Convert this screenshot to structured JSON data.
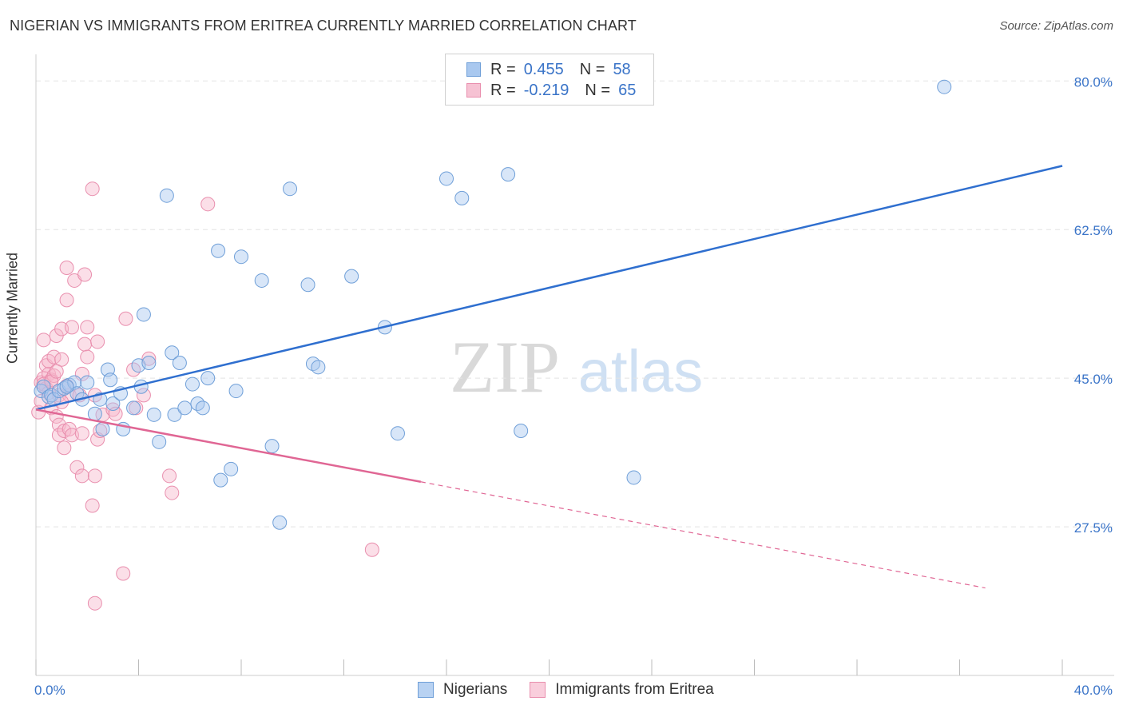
{
  "title": "NIGERIAN VS IMMIGRANTS FROM ERITREA CURRENTLY MARRIED CORRELATION CHART",
  "source": "Source: ZipAtlas.com",
  "watermark": {
    "zip": "ZIP",
    "atlas": "atlas"
  },
  "legend_top": {
    "rows": [
      {
        "r_label": "R =",
        "r_value": "0.455",
        "n_label": "N =",
        "n_value": "58"
      },
      {
        "r_label": "R =",
        "r_value": "-0.219",
        "n_label": "N =",
        "n_value": "65"
      }
    ]
  },
  "colors": {
    "blue_fill": "#a9c8ef",
    "blue_stroke": "#6f9fd8",
    "blue_line": "#2f6fcf",
    "pink_fill": "#f6b9cc",
    "pink_stroke": "#e98fae",
    "pink_line": "#e06694",
    "axis_text": "#3a74c8",
    "grid": "#e4e4e4"
  },
  "chart_data": {
    "type": "scatter",
    "title": "NIGERIAN VS IMMIGRANTS FROM ERITREA CURRENTLY MARRIED CORRELATION CHART",
    "xlabel": "",
    "ylabel": "Currently Married",
    "xlim": [
      0,
      40
    ],
    "ylim": [
      10,
      82
    ],
    "x_tick_labels": [
      "0.0%",
      "40.0%"
    ],
    "y_ticks": [
      27.5,
      45.0,
      62.5,
      80.0
    ],
    "y_tick_labels": [
      "27.5%",
      "45.0%",
      "62.5%",
      "80.0%"
    ],
    "legend": [
      "Nigerians",
      "Immigrants from Eritrea"
    ],
    "series": [
      {
        "name": "Nigerians",
        "R": 0.455,
        "N": 58,
        "trend": {
          "x": [
            0.0,
            40.0
          ],
          "y": [
            41.3,
            70.0
          ],
          "style": "solid"
        },
        "points": [
          [
            0.2,
            43.5
          ],
          [
            0.3,
            44.0
          ],
          [
            0.5,
            42.8
          ],
          [
            0.6,
            43.0
          ],
          [
            0.7,
            42.5
          ],
          [
            0.9,
            43.5
          ],
          [
            1.1,
            43.8
          ],
          [
            1.3,
            44.2
          ],
          [
            1.5,
            44.5
          ],
          [
            1.6,
            43.2
          ],
          [
            1.8,
            42.5
          ],
          [
            2.0,
            44.5
          ],
          [
            2.3,
            40.8
          ],
          [
            2.5,
            42.5
          ],
          [
            2.6,
            39.0
          ],
          [
            2.8,
            46.0
          ],
          [
            2.9,
            44.8
          ],
          [
            3.0,
            42.0
          ],
          [
            3.3,
            43.2
          ],
          [
            3.4,
            39.0
          ],
          [
            3.8,
            41.5
          ],
          [
            4.0,
            46.5
          ],
          [
            4.1,
            44.0
          ],
          [
            4.2,
            52.5
          ],
          [
            4.4,
            46.8
          ],
          [
            4.6,
            40.7
          ],
          [
            4.8,
            37.5
          ],
          [
            5.1,
            66.5
          ],
          [
            5.3,
            48.0
          ],
          [
            5.4,
            40.7
          ],
          [
            5.6,
            46.8
          ],
          [
            5.8,
            41.5
          ],
          [
            6.1,
            44.3
          ],
          [
            6.3,
            42.0
          ],
          [
            6.5,
            41.5
          ],
          [
            6.7,
            45.0
          ],
          [
            7.2,
            33.0
          ],
          [
            7.1,
            60.0
          ],
          [
            7.6,
            34.3
          ],
          [
            7.8,
            43.5
          ],
          [
            8.0,
            59.3
          ],
          [
            8.8,
            56.5
          ],
          [
            9.2,
            37.0
          ],
          [
            9.5,
            28.0
          ],
          [
            9.9,
            67.3
          ],
          [
            10.6,
            56.0
          ],
          [
            10.8,
            46.7
          ],
          [
            11.0,
            46.3
          ],
          [
            12.3,
            57.0
          ],
          [
            13.6,
            51.0
          ],
          [
            14.1,
            38.5
          ],
          [
            16.0,
            68.5
          ],
          [
            16.6,
            66.2
          ],
          [
            18.4,
            69.0
          ],
          [
            18.9,
            38.8
          ],
          [
            23.3,
            33.3
          ],
          [
            35.4,
            79.3
          ],
          [
            1.2,
            44.0
          ]
        ]
      },
      {
        "name": "Immigrants from Eritrea",
        "R": -0.219,
        "N": 65,
        "trend": {
          "x": [
            0.0,
            15.0
          ],
          "y": [
            41.3,
            32.8
          ],
          "style": "solid"
        },
        "trend_extension": {
          "x": [
            15.0,
            37.0
          ],
          "y": [
            32.8,
            20.3
          ],
          "style": "dashed"
        },
        "points": [
          [
            0.1,
            41.0
          ],
          [
            0.2,
            42.3
          ],
          [
            0.2,
            44.5
          ],
          [
            0.3,
            45.0
          ],
          [
            0.3,
            49.5
          ],
          [
            0.4,
            46.5
          ],
          [
            0.4,
            43.8
          ],
          [
            0.5,
            45.5
          ],
          [
            0.5,
            47.0
          ],
          [
            0.6,
            44.8
          ],
          [
            0.6,
            41.5
          ],
          [
            0.7,
            45.3
          ],
          [
            0.7,
            47.5
          ],
          [
            0.8,
            50.0
          ],
          [
            0.8,
            40.5
          ],
          [
            0.9,
            39.5
          ],
          [
            0.9,
            38.3
          ],
          [
            0.9,
            43.0
          ],
          [
            1.0,
            50.8
          ],
          [
            1.0,
            47.2
          ],
          [
            1.1,
            38.8
          ],
          [
            1.1,
            36.8
          ],
          [
            1.2,
            58.0
          ],
          [
            1.2,
            54.2
          ],
          [
            1.3,
            43.0
          ],
          [
            1.3,
            39.0
          ],
          [
            1.4,
            38.3
          ],
          [
            1.4,
            51.0
          ],
          [
            1.5,
            56.5
          ],
          [
            1.6,
            34.5
          ],
          [
            1.7,
            43.0
          ],
          [
            1.8,
            45.5
          ],
          [
            1.8,
            38.5
          ],
          [
            1.8,
            33.5
          ],
          [
            1.9,
            57.2
          ],
          [
            1.9,
            49.0
          ],
          [
            2.0,
            51.0
          ],
          [
            2.0,
            47.5
          ],
          [
            2.2,
            30.0
          ],
          [
            2.3,
            33.5
          ],
          [
            2.3,
            43.0
          ],
          [
            2.3,
            18.5
          ],
          [
            2.2,
            67.3
          ],
          [
            2.4,
            49.3
          ],
          [
            2.4,
            37.8
          ],
          [
            2.5,
            38.8
          ],
          [
            2.6,
            40.7
          ],
          [
            3.0,
            41.3
          ],
          [
            3.1,
            40.8
          ],
          [
            3.4,
            22.0
          ],
          [
            3.5,
            52.0
          ],
          [
            3.8,
            46.0
          ],
          [
            3.9,
            41.5
          ],
          [
            4.2,
            43.0
          ],
          [
            4.4,
            47.3
          ],
          [
            5.2,
            33.5
          ],
          [
            5.3,
            31.5
          ],
          [
            6.7,
            65.5
          ],
          [
            13.1,
            24.8
          ],
          [
            0.3,
            44.3
          ],
          [
            0.5,
            43.3
          ],
          [
            0.6,
            44.6
          ],
          [
            0.8,
            45.8
          ],
          [
            1.0,
            42.2
          ],
          [
            1.2,
            44.1
          ]
        ]
      }
    ]
  },
  "legend_bottom": {
    "items": [
      "Nigerians",
      "Immigrants from Eritrea"
    ]
  }
}
